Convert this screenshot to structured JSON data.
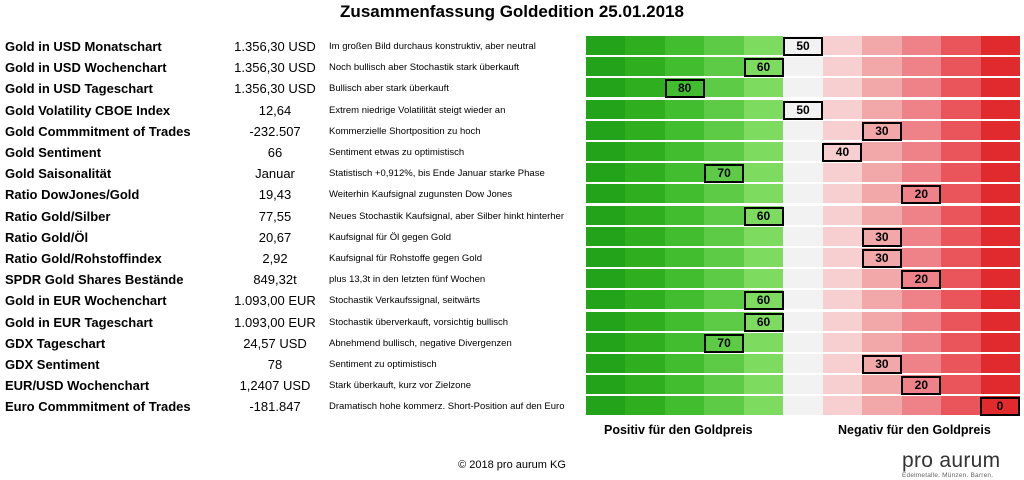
{
  "title": "Zusammenfassung Goldedition 25.01.2018",
  "scale_colors": [
    "#23a31a",
    "#2fae20",
    "#43bd30",
    "#5dcb46",
    "#7ddc5f",
    "#f2f2f2",
    "#f7cfd0",
    "#f2a7a9",
    "#ef8288",
    "#ea555c",
    "#e02a2e"
  ],
  "rows": [
    {
      "name": "Gold in USD Monatschart",
      "value": "1.356,30 USD",
      "comment": "Im großen Bild durchaus konstruktiv,  aber neutral",
      "score": 50
    },
    {
      "name": "Gold in USD Wochenchart",
      "value": "1.356,30 USD",
      "comment": "Noch bullisch aber Stochastik stark überkauft",
      "score": 60
    },
    {
      "name": "Gold in USD Tageschart",
      "value": "1.356,30 USD",
      "comment": "Bullisch aber stark überkauft",
      "score": 80
    },
    {
      "name": "Gold Volatility CBOE Index",
      "value": "12,64",
      "comment": "Extrem niedrige Volatilität steigt wieder an",
      "score": 50
    },
    {
      "name": "Gold Commmitment of Trades",
      "value": "-232.507",
      "comment": "Kommerzielle Shortposition zu hoch",
      "score": 30
    },
    {
      "name": "Gold Sentiment",
      "value": "66",
      "comment": "Sentiment etwas zu optimistisch",
      "score": 40
    },
    {
      "name": "Gold Saisonalität",
      "value": "Januar",
      "comment": "Statistisch +0,912%, bis Ende Januar starke Phase",
      "score": 70
    },
    {
      "name": "Ratio DowJones/Gold",
      "value": "19,43",
      "comment": "Weiterhin Kaufsignal zugunsten Dow Jones",
      "score": 20
    },
    {
      "name": "Ratio Gold/Silber",
      "value": "77,55",
      "comment": "Neues Stochastik Kaufsignal, aber Silber hinkt hinterher",
      "score": 60
    },
    {
      "name": "Ratio Gold/Öl",
      "value": "20,67",
      "comment": "Kaufsignal für Öl gegen Gold",
      "score": 30
    },
    {
      "name": "Ratio Gold/Rohstoffindex",
      "value": "2,92",
      "comment": "Kaufsignal für Rohstoffe gegen Gold",
      "score": 30
    },
    {
      "name": "SPDR Gold Shares Bestände",
      "value": "849,32t",
      "comment": "plus 13,3t in den letzten fünf Wochen",
      "score": 20
    },
    {
      "name": "Gold in EUR Wochenchart",
      "value": "1.093,00 EUR",
      "comment": "Stochastik Verkaufssignal, seitwärts",
      "score": 60
    },
    {
      "name": "Gold in EUR Tageschart",
      "value": "1.093,00 EUR",
      "comment": "Stochastik überverkauft, vorsichtig bullisch",
      "score": 60
    },
    {
      "name": "GDX Tageschart",
      "value": "24,57 USD",
      "comment": "Abnehmend bullisch, negative Divergenzen",
      "score": 70
    },
    {
      "name": "GDX Sentiment",
      "value": "78",
      "comment": "Sentiment zu optimistisch",
      "score": 30
    },
    {
      "name": "EUR/USD Wochenchart",
      "value": "1,2407 USD",
      "comment": "Stark überkauft, kurz vor Zielzone",
      "score": 20
    },
    {
      "name": "Euro Commmitment of Trades",
      "value": "-181.847",
      "comment": "Dramatisch hohe kommerz. Short-Position auf den Euro",
      "score": 0
    }
  ],
  "label_positive": "Positiv für den Goldpreis",
  "label_negative": "Negativ für den Goldpreis",
  "copyright": "© 2018 pro aurum KG",
  "logo": {
    "name": "pro aurum",
    "tagline": "Edelmetalle. Münzen. Barren."
  }
}
